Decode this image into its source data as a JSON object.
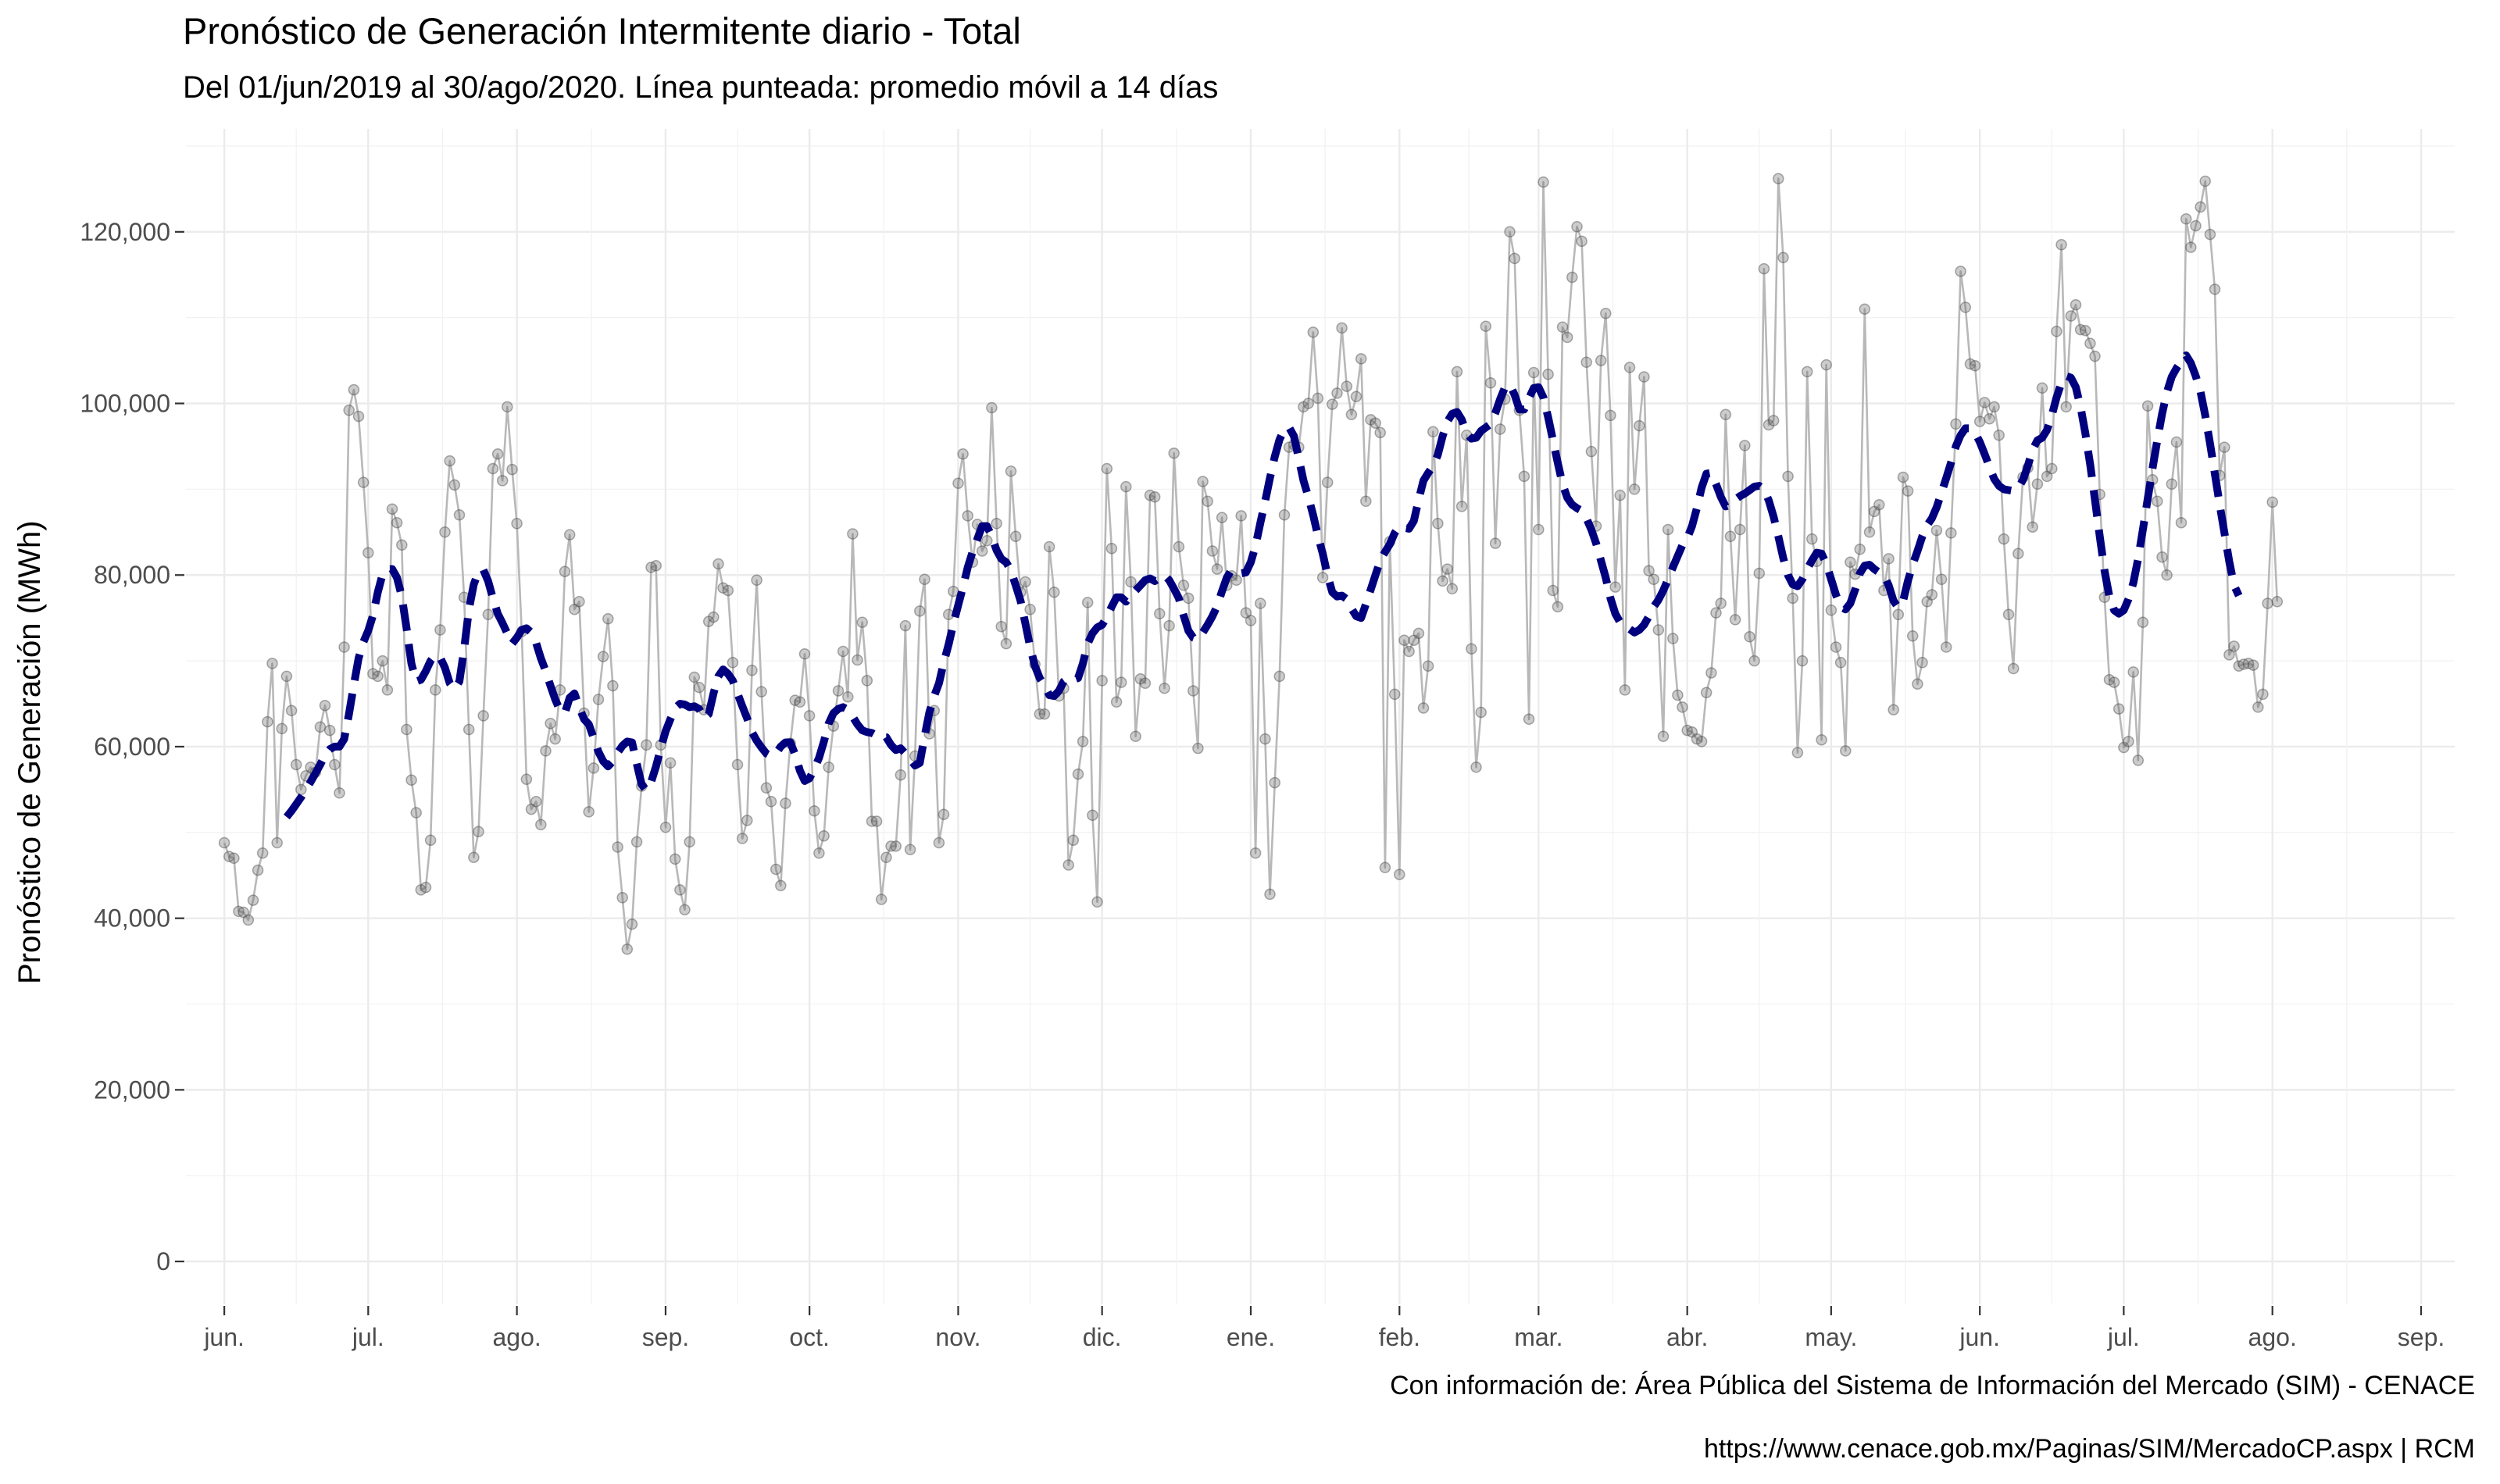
{
  "chart_data": {
    "type": "line",
    "title": "Pronóstico de Generación Intermitente diario - Total",
    "subtitle": "Del 01/jun/2019 al 30/ago/2020. Línea punteada: promedio móvil a 14 días",
    "xlabel": "",
    "ylabel": "Pronóstico de Generación (MWh)",
    "caption_source": "Con información de: Área Pública del Sistema de Información del Mercado (SIM) - CENACE",
    "caption_url": "https://www.cenace.gob.mx/Paginas/SIM/MercadoCP.aspx | RCM",
    "ylim": [
      -5000,
      132000
    ],
    "x_range": [
      "2019-05-24",
      "2020-09-08"
    ],
    "y_ticks": [
      0,
      20000,
      40000,
      60000,
      80000,
      100000,
      120000
    ],
    "y_tick_labels": [
      "0",
      "20,000",
      "40,000",
      "60,000",
      "80,000",
      "100,000",
      "120,000"
    ],
    "x_ticks": [
      "2019-06-01",
      "2019-07-01",
      "2019-08-01",
      "2019-09-01",
      "2019-10-01",
      "2019-11-01",
      "2019-12-01",
      "2020-01-01",
      "2020-02-01",
      "2020-03-01",
      "2020-04-01",
      "2020-05-01",
      "2020-06-01",
      "2020-07-01",
      "2020-08-01",
      "2020-09-01"
    ],
    "x_tick_labels": [
      "jun.",
      "jul.",
      "ago.",
      "sep.",
      "oct.",
      "nov.",
      "dic.",
      "ene.",
      "feb.",
      "mar.",
      "abr.",
      "may.",
      "jun.",
      "jul.",
      "ago.",
      "sep."
    ],
    "grid": true,
    "series": [
      {
        "style": "points-with-line",
        "color": "#8c8c8c",
        "x_start": "2019-06-01",
        "x_step_days": 1,
        "values": [
          48800,
          47200,
          47000,
          40800,
          40700,
          39800,
          42100,
          45600,
          47600,
          62900,
          69700,
          48800,
          62100,
          68200,
          64200,
          57900,
          55000,
          56600,
          57600,
          57000,
          62300,
          64800,
          61900,
          57900,
          54600,
          71600,
          99200,
          101600,
          98500,
          90800,
          82600,
          68500,
          68200,
          70000,
          66600,
          87700,
          86100,
          83500,
          62000,
          56100,
          52300,
          43300,
          43600,
          49100,
          66600,
          73600,
          85000,
          93300,
          90500,
          87000,
          77400,
          62000,
          47100,
          50100,
          63600,
          75400,
          92400,
          94100,
          91000,
          99600,
          92300,
          86000,
          73400,
          56200,
          52700,
          53600,
          50900,
          59500,
          62700,
          60900,
          66600,
          80400,
          84700,
          76000,
          76900,
          63900,
          52400,
          57500,
          65500,
          70500,
          74900,
          67100,
          48300,
          42400,
          36400,
          39300,
          48900,
          55400,
          60200,
          80900,
          81100,
          60200,
          50600,
          58100,
          46900,
          43300,
          41000,
          48900,
          68100,
          66900,
          64300,
          74600,
          75100,
          81300,
          78500,
          78200,
          69800,
          57900,
          49300,
          51400,
          68900,
          79400,
          66400,
          55200,
          53600,
          45700,
          43800,
          53400,
          60400,
          65400,
          65200,
          70800,
          63600,
          52500,
          47600,
          49600,
          57600,
          62400,
          66500,
          71100,
          65800,
          84800,
          70100,
          74500,
          67700,
          51300,
          51300,
          42200,
          47100,
          48400,
          48400,
          56700,
          74100,
          48000,
          58900,
          75800,
          79500,
          61500,
          64200,
          48800,
          52100,
          75400,
          78100,
          90700,
          94100,
          86900,
          81500,
          85900,
          82800,
          84000,
          99500,
          86000,
          74000,
          72000,
          92100,
          84500,
          78000,
          79200,
          76000,
          69600,
          63800,
          63800,
          83300,
          78000,
          65900,
          66800,
          46200,
          49100,
          56800,
          60600,
          76800,
          52000,
          41900,
          67700,
          92400,
          83100,
          65200,
          67500,
          90300,
          79200,
          61200,
          67900,
          67400,
          89300,
          89100,
          75500,
          66800,
          74100,
          94200,
          83300,
          78800,
          77300,
          66500,
          59800,
          90900,
          88600,
          82800,
          80700,
          86700,
          78800,
          79900,
          79400,
          86900,
          75600,
          74700,
          47600,
          76700,
          60900,
          42800,
          55800,
          68200,
          87000,
          94900,
          95200,
          94900,
          99600,
          100000,
          108300,
          100600,
          79700,
          90800,
          99900,
          101200,
          108800,
          102000,
          98700,
          100800,
          105200,
          88600,
          98100,
          97700,
          96600,
          45900,
          83900,
          66100,
          45100,
          72400,
          71100,
          72400,
          73200,
          64500,
          69400,
          96700,
          86000,
          79300,
          80700,
          78400,
          103700,
          88000,
          96300,
          71400,
          57600,
          64000,
          109000,
          102400,
          83700,
          97000,
          100500,
          120000,
          116900,
          99200,
          91500,
          63200,
          103600,
          85300,
          125800,
          103400,
          78200,
          76300,
          108900,
          107700,
          114700,
          120600,
          118900,
          104800,
          94400,
          85700,
          105000,
          110500,
          98600,
          78600,
          89300,
          66600,
          104200,
          90000,
          97400,
          103100,
          80500,
          79500,
          73600,
          61200,
          85300,
          72600,
          66000,
          64600,
          61900,
          61700,
          60900,
          60600,
          66300,
          68600,
          75600,
          76700,
          98700,
          84500,
          74800,
          85300,
          95100,
          72800,
          70000,
          80200,
          115700,
          97500,
          98000,
          126200,
          117000,
          91500,
          77300,
          59300,
          70000,
          103700,
          84200,
          81600,
          60800,
          104500,
          75900,
          71600,
          69800,
          59500,
          81500,
          80100,
          83000,
          111000,
          85000,
          87400,
          88200,
          78200,
          81900,
          64300,
          75400,
          91400,
          89800,
          72900,
          67300,
          69800,
          76900,
          77700,
          85200,
          79500,
          71600,
          84900,
          97600,
          115400,
          111200,
          104600,
          104400,
          97900,
          100100,
          98200,
          99600,
          96300,
          84200,
          75400,
          69100,
          82500,
          91400,
          92500,
          85600,
          90600,
          101800,
          91500,
          92400,
          108400,
          118500,
          99600,
          110200,
          111500,
          108600,
          108500,
          107000,
          105500,
          89400,
          77400,
          67800,
          67500,
          64400,
          59900,
          60600,
          68700,
          58400,
          74500,
          99700,
          91100,
          88600,
          82100,
          80000,
          90600,
          95500,
          86100,
          121500,
          118200,
          120700,
          122900,
          125900,
          119700,
          113300,
          91600,
          94900,
          70700,
          71700,
          69400,
          69600,
          69700,
          69500,
          64600,
          66100,
          76700,
          88500,
          76900
        ]
      },
      {
        "name": "promedio móvil a 14 días",
        "style": "dashed-line",
        "color": "#00007f",
        "x_start": "2019-06-14",
        "x_step_days": 1,
        "values": [
          51800,
          52500,
          53300,
          54100,
          55000,
          55900,
          56900,
          57900,
          59000,
          59700,
          60000,
          60000,
          60900,
          63800,
          67200,
          70300,
          72200,
          73500,
          75300,
          78000,
          80100,
          80700,
          80700,
          79700,
          77500,
          73800,
          69700,
          67600,
          67800,
          68800,
          70000,
          70700,
          70400,
          69200,
          67400,
          66700,
          67600,
          71400,
          76000,
          78900,
          80400,
          80600,
          79300,
          77300,
          75500,
          74400,
          73200,
          72000,
          72700,
          73600,
          73800,
          73300,
          72100,
          70300,
          68800,
          67100,
          65500,
          64200,
          63900,
          65700,
          66200,
          64600,
          63200,
          62600,
          61000,
          59400,
          58300,
          57700,
          58300,
          59300,
          60100,
          60600,
          60500,
          58000,
          55600,
          54900,
          55900,
          57700,
          59800,
          61800,
          63200,
          64500,
          65000,
          64900,
          64600,
          64700,
          64400,
          63300,
          63800,
          66200,
          68200,
          69000,
          68500,
          67700,
          66200,
          64700,
          63300,
          61700,
          60700,
          59900,
          59200,
          58900,
          59200,
          60000,
          60500,
          60500,
          59100,
          57200,
          56000,
          56300,
          57400,
          58700,
          60600,
          62700,
          63900,
          64400,
          64600,
          64300,
          63500,
          62600,
          61900,
          61700,
          61600,
          61300,
          61100,
          61100,
          60200,
          59600,
          59800,
          59200,
          58500,
          57800,
          58100,
          61200,
          64000,
          65900,
          67400,
          69800,
          71900,
          74300,
          76500,
          78600,
          80900,
          82700,
          84200,
          85700,
          85700,
          84500,
          82900,
          81900,
          81500,
          80500,
          78800,
          77000,
          74400,
          71600,
          69400,
          68000,
          67100,
          66000,
          65900,
          66500,
          67600,
          68000,
          67800,
          68000,
          69700,
          72000,
          73200,
          73900,
          74200,
          75100,
          76300,
          77400,
          77400,
          76900,
          77600,
          78200,
          78800,
          79400,
          79600,
          79300,
          79700,
          80000,
          79400,
          78400,
          77300,
          75300,
          73500,
          72700,
          72500,
          73300,
          74200,
          75200,
          76400,
          78100,
          79700,
          80600,
          80300,
          80200,
          80300,
          81500,
          83400,
          86100,
          88600,
          91300,
          93800,
          95800,
          97000,
          97200,
          96200,
          93600,
          91000,
          89100,
          87000,
          84600,
          82500,
          80000,
          78000,
          77500,
          77600,
          77200,
          76100,
          75200,
          75000,
          76600,
          78300,
          80000,
          81700,
          82700,
          83600,
          84900,
          85700,
          85500,
          85400,
          86300,
          88800,
          91000,
          91900,
          92700,
          94000,
          96200,
          97900,
          98800,
          99000,
          98100,
          96500,
          95900,
          96000,
          96800,
          97200,
          97600,
          98900,
          100500,
          101900,
          102200,
          101000,
          99300,
          99300,
          100600,
          101800,
          101900,
          100700,
          98400,
          95700,
          93100,
          90600,
          89000,
          88200,
          87800,
          87500,
          86600,
          85300,
          83700,
          81700,
          79700,
          77300,
          75500,
          74500,
          74200,
          73700,
          73300,
          73600,
          74200,
          75200,
          76300,
          77100,
          78200,
          79500,
          80900,
          82200,
          83500,
          84300,
          85700,
          87800,
          90200,
          91800,
          91900,
          90600,
          89100,
          88000,
          88200,
          88800,
          89200,
          89500,
          89900,
          90300,
          90400,
          90000,
          88700,
          86800,
          84500,
          82000,
          80000,
          78900,
          78700,
          79500,
          80700,
          81700,
          82600,
          82500,
          81300,
          79500,
          77700,
          76300,
          76000,
          76700,
          78300,
          80200,
          81100,
          81200,
          80700,
          80300,
          80000,
          78800,
          77000,
          76200,
          77000,
          79300,
          81200,
          82800,
          84500,
          85800,
          86600,
          87900,
          89600,
          91300,
          93100,
          95000,
          96300,
          97100,
          97100,
          96600,
          95500,
          94100,
          92600,
          91200,
          90400,
          90000,
          89900,
          89800,
          90100,
          91100,
          92700,
          94600,
          95700,
          96000,
          96900,
          98600,
          100700,
          102400,
          103200,
          103000,
          101900,
          99600,
          96500,
          92900,
          88800,
          84500,
          80500,
          77500,
          75900,
          75500,
          75900,
          77200,
          79100,
          81900,
          85300,
          88900,
          92400,
          95700,
          98800,
          101300,
          103100,
          104100,
          104900,
          105600,
          104700,
          103200,
          101400,
          98600,
          95300,
          91800,
          88200,
          84900,
          81600,
          78800,
          77600
        ]
      }
    ]
  }
}
